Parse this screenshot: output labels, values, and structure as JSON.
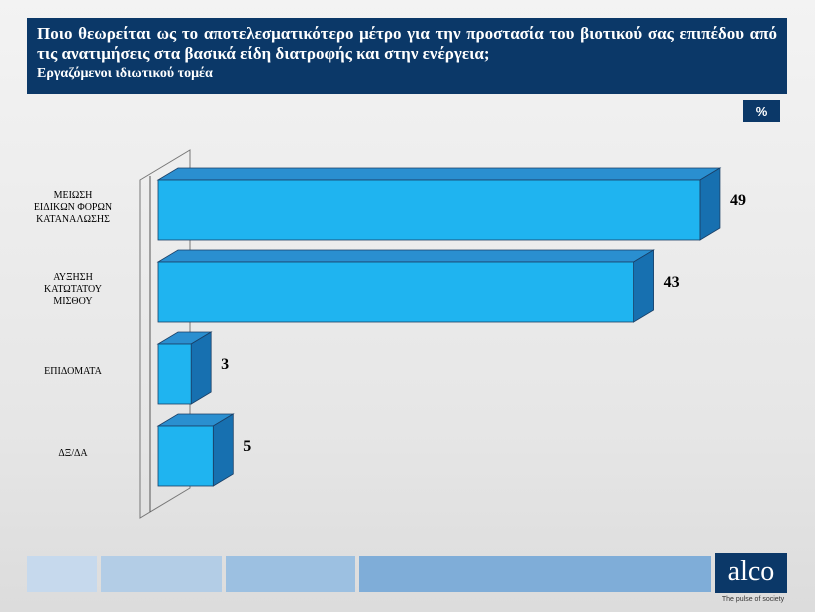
{
  "header": {
    "title": "Ποιο θεωρείται ως το αποτελεσματικότερο μέτρο για την προστασία του βιοτικού σας επιπέδου από τις ανατιμήσεις στα βασικά είδη διατροφής και στην ενέργεια;",
    "subtitle": "Εργαζόμενοι ιδιωτικού τομέα"
  },
  "unit_badge": "%",
  "logo": {
    "text": "alco",
    "tagline": "The pulse of society"
  },
  "colors": {
    "header_bg": "#0b3868",
    "bar_front": "#1fb4f0",
    "bar_top": "#2a8fd0",
    "bar_side": "#1770b0",
    "footer_1": "#c6d9ed",
    "footer_2": "#b3cde6",
    "footer_3": "#9cc0e1",
    "footer_4": "#7fadd8"
  },
  "chart_data": {
    "type": "bar",
    "orientation": "horizontal",
    "categories": [
      [
        "ΜΕΙΩΣΗ",
        "ΕΙΔΙΚΩΝ ΦΟΡΩΝ",
        "ΚΑΤΑΝΑΛΩΣΗΣ"
      ],
      [
        "ΑΥΞΗΣΗ",
        "ΚΑΤΩΤΑΤΟΥ",
        "ΜΙΣΘΟΥ"
      ],
      [
        "ΕΠΙΔΟΜΑΤΑ"
      ],
      [
        "ΔΞ/ΔΑ"
      ]
    ],
    "values": [
      49,
      43,
      3,
      5
    ],
    "data_labels": [
      "49",
      "43",
      "3",
      "5"
    ],
    "xlim": [
      0,
      50
    ],
    "grid": false,
    "legend": "none"
  }
}
